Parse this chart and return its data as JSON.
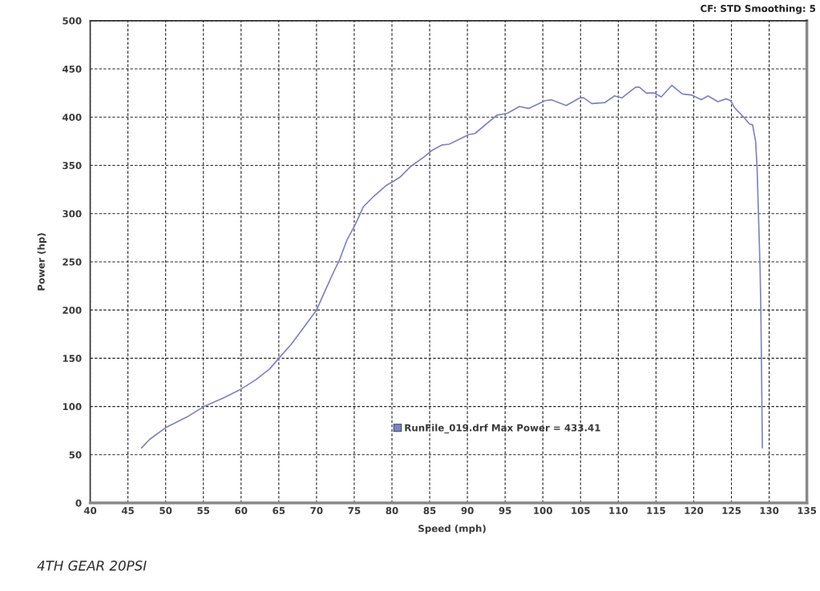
{
  "chart_data": {
    "type": "line",
    "subtitle": "CF: STD Smoothing: 5",
    "xlabel": "Speed (mph)",
    "ylabel": "Power (hp)",
    "annotations": [
      "4TH GEAR 20PSI"
    ],
    "x": [
      46.8,
      47.9,
      50.0,
      52.8,
      55.1,
      57.7,
      60.0,
      62.0,
      63.8,
      65.0,
      66.6,
      68.4,
      70.0,
      71.2,
      72.3,
      73.0,
      74.0,
      75.1,
      76.2,
      77.6,
      79.2,
      80.1,
      81.1,
      82.5,
      84.3,
      85.4,
      86.6,
      87.6,
      90.2,
      91.0,
      93.9,
      95.3,
      96.9,
      98.1,
      100.3,
      101.1,
      103.1,
      104.9,
      105.4,
      106.5,
      108.2,
      109.5,
      110.5,
      112.3,
      112.8,
      113.7,
      114.8,
      115.7,
      117.1,
      118.5,
      119.7,
      121.0,
      121.9,
      123.2,
      124.3,
      124.9,
      125.4,
      126.5,
      127.4,
      127.8,
      128.2,
      128.4,
      128.8,
      128.9,
      129.0,
      129.1
    ],
    "series": [
      {
        "name": "RunFile_019.drf Max Power = 433.41",
        "color": "#7d84bb",
        "values": [
          57,
          66,
          78,
          89,
          100,
          109,
          118,
          128,
          139,
          150,
          164,
          183,
          200,
          221,
          240,
          251,
          272,
          288,
          307,
          318,
          329,
          333,
          338,
          349,
          359,
          366,
          371,
          372,
          382,
          383,
          402,
          404,
          411,
          409,
          417,
          418,
          412,
          420,
          420,
          414,
          415,
          422,
          420,
          431,
          431,
          425,
          425,
          421,
          433,
          424,
          423,
          418,
          422,
          416,
          419,
          417,
          410,
          401,
          393,
          392,
          375,
          348,
          242,
          199,
          131,
          57
        ]
      }
    ],
    "xlim": [
      40,
      135
    ],
    "ylim": [
      0,
      500
    ],
    "xticks": [
      40,
      45,
      50,
      55,
      60,
      65,
      70,
      75,
      80,
      85,
      90,
      95,
      100,
      105,
      110,
      115,
      120,
      125,
      130,
      135
    ],
    "yticks": [
      0,
      50,
      100,
      150,
      200,
      250,
      300,
      350,
      400,
      450,
      500
    ],
    "grid": true,
    "legend": "bottom",
    "line_style": "solid"
  }
}
